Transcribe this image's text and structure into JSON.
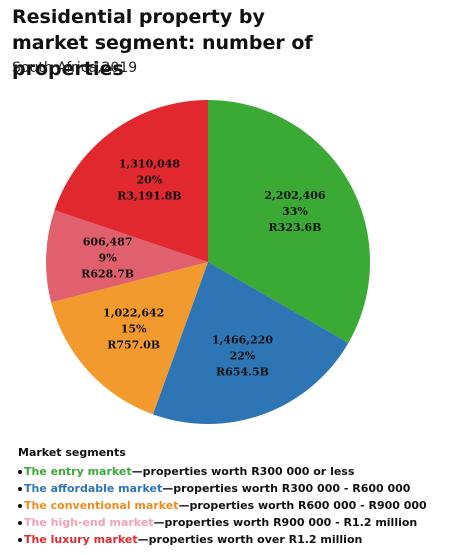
{
  "chart_data": {
    "type": "pie",
    "title": "Residential property by market segment: number of properties",
    "subtitle": "South Africa,2019",
    "categories": [
      "The entry market",
      "The affordable market",
      "The conventional market",
      "The high-end market",
      "The luxury market"
    ],
    "descriptions": [
      "—properties worth R300 000 or less",
      "—properties worth R300 000 - R600 000",
      "—properties worth R600 000 - R900 000",
      "—properties worth R900 000 - R1.2 million",
      "—properties worth over R1.2 million"
    ],
    "colors": [
      "#3aaa35",
      "#2e75b6",
      "#f39a2e",
      "#e0606e",
      "#e0282e"
    ],
    "legend_text_colors": [
      "#3aaa35",
      "#2e75b6",
      "#f08a1c",
      "#f2a2b6",
      "#e0282e"
    ],
    "values": [
      2202406,
      1466220,
      1022642,
      606487,
      1310048
    ],
    "value_labels": [
      "2,202,406",
      "1,466,220",
      "1,022,642",
      "606,487",
      "1,310,048"
    ],
    "shares": [
      33,
      22,
      15,
      9,
      20
    ],
    "share_labels": [
      "33%",
      "22%",
      "15%",
      "9%",
      "20%"
    ],
    "market_values": [
      323.6,
      654.5,
      757.0,
      628.7,
      3191.8
    ],
    "market_value_labels": [
      "R323.6B",
      "R654.5B",
      "R757.0B",
      "R628.7B",
      "R3,191.8B"
    ],
    "legend_title": "Market segments"
  }
}
